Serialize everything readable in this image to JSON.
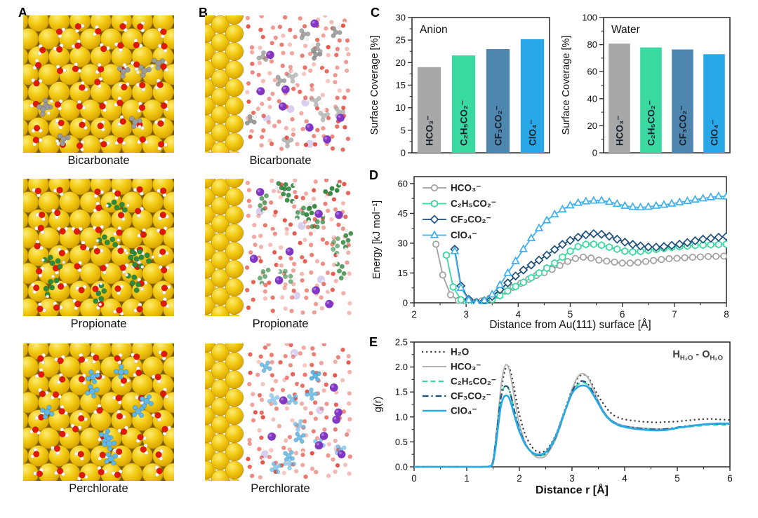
{
  "figure": {
    "panel_labels": [
      "A",
      "B",
      "C",
      "D",
      "E"
    ],
    "rows": [
      {
        "caption": "Bicarbonate",
        "anion_color": "#9B9B9B"
      },
      {
        "caption": "Propionate",
        "anion_color": "#2E8B3C"
      },
      {
        "caption": "Perchlorate",
        "anion_color": "#5FB8E9"
      }
    ],
    "colors": {
      "gold_surface": "#EFC319",
      "water_oxygen_red": "#E2180A",
      "hydrogen_white": "#F8F8F8",
      "cation_purple": "#8136C4"
    }
  },
  "chart_data": [
    {
      "id": "anion_surface_coverage",
      "type": "bar",
      "title": "Anion",
      "ylabel": "Surface Coverage [%]",
      "ylim": [
        0,
        30
      ],
      "yticks": [
        0,
        5,
        10,
        15,
        20,
        25,
        30
      ],
      "y_minor_step": 2.5,
      "categories": [
        "HCO₃⁻",
        "C₂H₅CO₂⁻",
        "CF₃CO₂⁻",
        "ClO₄⁻"
      ],
      "values": [
        19.0,
        21.6,
        23.0,
        25.2
      ],
      "bar_colors": [
        "#A8A8A8",
        "#3BD9A2",
        "#4E86B0",
        "#29A8E8"
      ],
      "label_color": "#16222E",
      "grid": false
    },
    {
      "id": "water_surface_coverage",
      "type": "bar",
      "title": "Water",
      "ylabel": "Surface Coverage [%]",
      "ylim": [
        0,
        100
      ],
      "yticks": [
        0,
        20,
        40,
        60,
        80,
        100
      ],
      "y_minor_step": 10,
      "categories": [
        "HCO₃⁻",
        "C₂H₅CO₂⁻",
        "CF₃CO₂⁻",
        "ClO₄⁻"
      ],
      "values": [
        80.7,
        77.9,
        76.4,
        72.9
      ],
      "bar_colors": [
        "#A8A8A8",
        "#3BD9A2",
        "#4E86B0",
        "#29A8E8"
      ],
      "label_color": "#16222E",
      "grid": false
    },
    {
      "id": "interaction_energy",
      "type": "line",
      "xlabel": "Distance from Au(111) surface [Å]",
      "ylabel": "Energy [kJ mol⁻¹]",
      "xlim": [
        2,
        8
      ],
      "ylim": [
        0,
        63.5
      ],
      "xticks": [
        2,
        3,
        4,
        5,
        6,
        7,
        8
      ],
      "yticks": [
        0,
        15,
        30,
        45,
        60
      ],
      "x_minor_step": 0.5,
      "y_minor_step": 7.5,
      "grid": false,
      "legend_position": "top-left",
      "series": [
        {
          "name": "HCO₃⁻",
          "color": "#A0A0A0",
          "marker": "circle",
          "x": [
            2.42,
            2.55,
            2.7,
            2.85,
            3.0,
            3.15,
            3.3,
            3.45,
            3.6,
            3.75,
            3.9,
            4.05,
            4.2,
            4.35,
            4.5,
            4.65,
            4.8,
            4.95,
            5.1,
            5.25,
            5.4,
            5.55,
            5.7,
            5.85,
            6.0,
            6.15,
            6.3,
            6.45,
            6.6,
            6.75,
            6.9,
            7.05,
            7.2,
            7.35,
            7.5,
            7.65,
            7.8,
            7.95
          ],
          "values": [
            29.5,
            14,
            4,
            1.2,
            0.4,
            0.3,
            1.0,
            2.2,
            3.8,
            5.8,
            7.8,
            9.8,
            11.8,
            13.8,
            15.2,
            16.8,
            18.8,
            20.8,
            22.3,
            23.0,
            22.5,
            21.5,
            21.0,
            20.5,
            20.0,
            20.0,
            20.3,
            20.8,
            21.3,
            21.8,
            22.2,
            22.4,
            22.7,
            22.9,
            23.1,
            23.3,
            23.4,
            23.5
          ]
        },
        {
          "name": "C₂H₅CO₂⁻",
          "color": "#35D89E",
          "marker": "hexagon",
          "x": [
            2.62,
            2.75,
            2.9,
            3.05,
            3.2,
            3.35,
            3.5,
            3.65,
            3.8,
            3.95,
            4.1,
            4.25,
            4.4,
            4.55,
            4.7,
            4.85,
            5.0,
            5.15,
            5.3,
            5.45,
            5.6,
            5.75,
            5.9,
            6.05,
            6.2,
            6.35,
            6.5,
            6.65,
            6.8,
            6.95,
            7.1,
            7.25,
            7.4,
            7.55,
            7.7,
            7.85,
            8.0
          ],
          "values": [
            24,
            8,
            1.5,
            0.3,
            0.1,
            0.5,
            1.6,
            3.6,
            6.0,
            8.2,
            10.3,
            12.6,
            15.0,
            17.5,
            20.0,
            23.0,
            26.0,
            28.3,
            29.4,
            29.5,
            29.0,
            28.0,
            27.0,
            26.0,
            25.6,
            25.9,
            26.4,
            26.9,
            27.4,
            27.9,
            28.3,
            28.6,
            28.9,
            29.1,
            29.3,
            29.4,
            29.5
          ]
        },
        {
          "name": "CF₃CO₂⁻",
          "color": "#1E4F7A",
          "marker": "diamond",
          "x": [
            2.78,
            2.9,
            3.05,
            3.2,
            3.35,
            3.5,
            3.65,
            3.8,
            3.95,
            4.1,
            4.25,
            4.4,
            4.55,
            4.7,
            4.85,
            5.0,
            5.15,
            5.3,
            5.45,
            5.6,
            5.75,
            5.9,
            6.05,
            6.2,
            6.35,
            6.5,
            6.65,
            6.8,
            6.95,
            7.1,
            7.25,
            7.4,
            7.55,
            7.7,
            7.85,
            8.0
          ],
          "values": [
            27,
            8.5,
            1.8,
            0.3,
            1.0,
            3.2,
            6.6,
            10.0,
            13.5,
            16.5,
            19.0,
            21.5,
            24.0,
            26.8,
            29.4,
            31.4,
            33.0,
            34.2,
            34.8,
            34.5,
            33.5,
            32.0,
            30.5,
            29.4,
            28.6,
            28.1,
            28.0,
            28.3,
            28.9,
            29.5,
            30.3,
            31.2,
            32.0,
            32.5,
            33.0,
            33.4
          ]
        },
        {
          "name": "ClO₄⁻",
          "color": "#3FB0EC",
          "marker": "triangle",
          "x": [
            2.78,
            2.9,
            3.05,
            3.2,
            3.35,
            3.5,
            3.65,
            3.8,
            3.95,
            4.1,
            4.25,
            4.4,
            4.55,
            4.7,
            4.85,
            5.0,
            5.15,
            5.3,
            5.45,
            5.6,
            5.75,
            5.9,
            6.05,
            6.2,
            6.35,
            6.5,
            6.65,
            6.8,
            6.95,
            7.1,
            7.25,
            7.4,
            7.55,
            7.7,
            7.85,
            8.0
          ],
          "values": [
            26,
            7.5,
            1.4,
            0.2,
            1.2,
            4.2,
            9.0,
            15.0,
            21.0,
            27.0,
            32.5,
            37.5,
            41.5,
            44.5,
            47.0,
            49.0,
            50.3,
            51.0,
            51.4,
            51.5,
            50.8,
            49.8,
            48.8,
            48.2,
            48.0,
            48.3,
            48.8,
            49.3,
            49.9,
            50.6,
            51.2,
            51.9,
            52.5,
            53.1,
            53.6,
            53.5
          ]
        }
      ]
    },
    {
      "id": "water_rdf",
      "type": "line",
      "xlabel": "Distance r [Å]",
      "ylabel": "g(r)",
      "xlim": [
        0,
        6
      ],
      "ylim": [
        0,
        2.5
      ],
      "xticks": [
        0,
        1,
        2,
        3,
        4,
        5,
        6
      ],
      "yticks": [
        0,
        0.5,
        1,
        1.5,
        2,
        2.5
      ],
      "x_minor_step": 0.5,
      "y_minor_step": 0.25,
      "ytick_decimals": 1,
      "grid": false,
      "legend_position": "top-left",
      "annotation": {
        "parts": [
          [
            "H",
            false
          ],
          [
            "H₂O",
            true
          ],
          [
            " - ",
            false
          ],
          [
            "O",
            false
          ],
          [
            "H₂O",
            true
          ]
        ]
      },
      "x": [
        0,
        0.5,
        1.0,
        1.3,
        1.45,
        1.5,
        1.55,
        1.6,
        1.65,
        1.7,
        1.75,
        1.8,
        1.85,
        1.9,
        1.95,
        2.0,
        2.1,
        2.2,
        2.3,
        2.4,
        2.5,
        2.6,
        2.7,
        2.8,
        2.9,
        3.0,
        3.1,
        3.2,
        3.3,
        3.4,
        3.5,
        3.6,
        3.7,
        3.8,
        3.9,
        4.0,
        4.2,
        4.4,
        4.6,
        4.8,
        5.0,
        5.2,
        5.4,
        5.6,
        5.8,
        6.0
      ],
      "series": [
        {
          "name": "H₂O",
          "color": "#3A3A3A",
          "style": "dotted",
          "width": 2.4,
          "values": [
            0,
            0,
            0,
            0,
            0.02,
            0.1,
            0.45,
            0.95,
            1.45,
            1.82,
            1.99,
            2.0,
            1.84,
            1.58,
            1.3,
            1.05,
            0.68,
            0.46,
            0.33,
            0.29,
            0.33,
            0.46,
            0.66,
            0.95,
            1.25,
            1.55,
            1.76,
            1.85,
            1.8,
            1.62,
            1.42,
            1.26,
            1.12,
            1.03,
            0.98,
            0.95,
            0.92,
            0.9,
            0.89,
            0.9,
            0.91,
            0.93,
            0.95,
            0.96,
            0.95,
            0.94
          ]
        },
        {
          "name": "HCO₃⁻",
          "color": "#B4B4B4",
          "style": "solid",
          "width": 2.0,
          "values": [
            0,
            0,
            0,
            0,
            0.02,
            0.14,
            0.55,
            1.08,
            1.6,
            1.93,
            2.05,
            1.97,
            1.72,
            1.42,
            1.12,
            0.86,
            0.52,
            0.32,
            0.21,
            0.18,
            0.22,
            0.37,
            0.58,
            0.88,
            1.22,
            1.55,
            1.79,
            1.87,
            1.79,
            1.57,
            1.32,
            1.12,
            0.98,
            0.9,
            0.85,
            0.82,
            0.79,
            0.77,
            0.76,
            0.76,
            0.78,
            0.8,
            0.83,
            0.85,
            0.86,
            0.86
          ]
        },
        {
          "name": "C₂H₅CO₂⁻",
          "color": "#35D89E",
          "style": "dashed",
          "width": 2.2,
          "values": [
            0,
            0,
            0,
            0,
            0.02,
            0.12,
            0.5,
            0.97,
            1.4,
            1.58,
            1.63,
            1.56,
            1.38,
            1.14,
            0.92,
            0.74,
            0.48,
            0.32,
            0.24,
            0.22,
            0.26,
            0.4,
            0.61,
            0.9,
            1.2,
            1.49,
            1.64,
            1.69,
            1.64,
            1.47,
            1.26,
            1.08,
            0.95,
            0.87,
            0.82,
            0.79,
            0.76,
            0.74,
            0.73,
            0.74,
            0.77,
            0.8,
            0.82,
            0.84,
            0.84,
            0.84
          ]
        },
        {
          "name": "CF₃CO₂⁻",
          "color": "#1E4F7A",
          "style": "dashdot",
          "width": 2.2,
          "values": [
            0,
            0,
            0,
            0,
            0.02,
            0.12,
            0.5,
            0.97,
            1.39,
            1.57,
            1.62,
            1.56,
            1.38,
            1.15,
            0.93,
            0.75,
            0.49,
            0.33,
            0.25,
            0.23,
            0.27,
            0.41,
            0.62,
            0.91,
            1.21,
            1.51,
            1.67,
            1.72,
            1.66,
            1.49,
            1.29,
            1.1,
            0.97,
            0.89,
            0.84,
            0.81,
            0.78,
            0.76,
            0.75,
            0.76,
            0.79,
            0.82,
            0.84,
            0.86,
            0.86,
            0.86
          ]
        },
        {
          "name": "ClO₄⁻",
          "color": "#29A8E8",
          "style": "solid",
          "width": 2.6,
          "values": [
            0,
            0,
            0,
            0,
            0.01,
            0.08,
            0.4,
            0.84,
            1.22,
            1.39,
            1.43,
            1.39,
            1.24,
            1.05,
            0.87,
            0.71,
            0.47,
            0.33,
            0.26,
            0.25,
            0.29,
            0.43,
            0.64,
            0.93,
            1.21,
            1.47,
            1.59,
            1.63,
            1.6,
            1.45,
            1.27,
            1.09,
            0.96,
            0.88,
            0.83,
            0.8,
            0.76,
            0.74,
            0.73,
            0.74,
            0.78,
            0.81,
            0.84,
            0.86,
            0.87,
            0.87
          ]
        }
      ]
    }
  ]
}
